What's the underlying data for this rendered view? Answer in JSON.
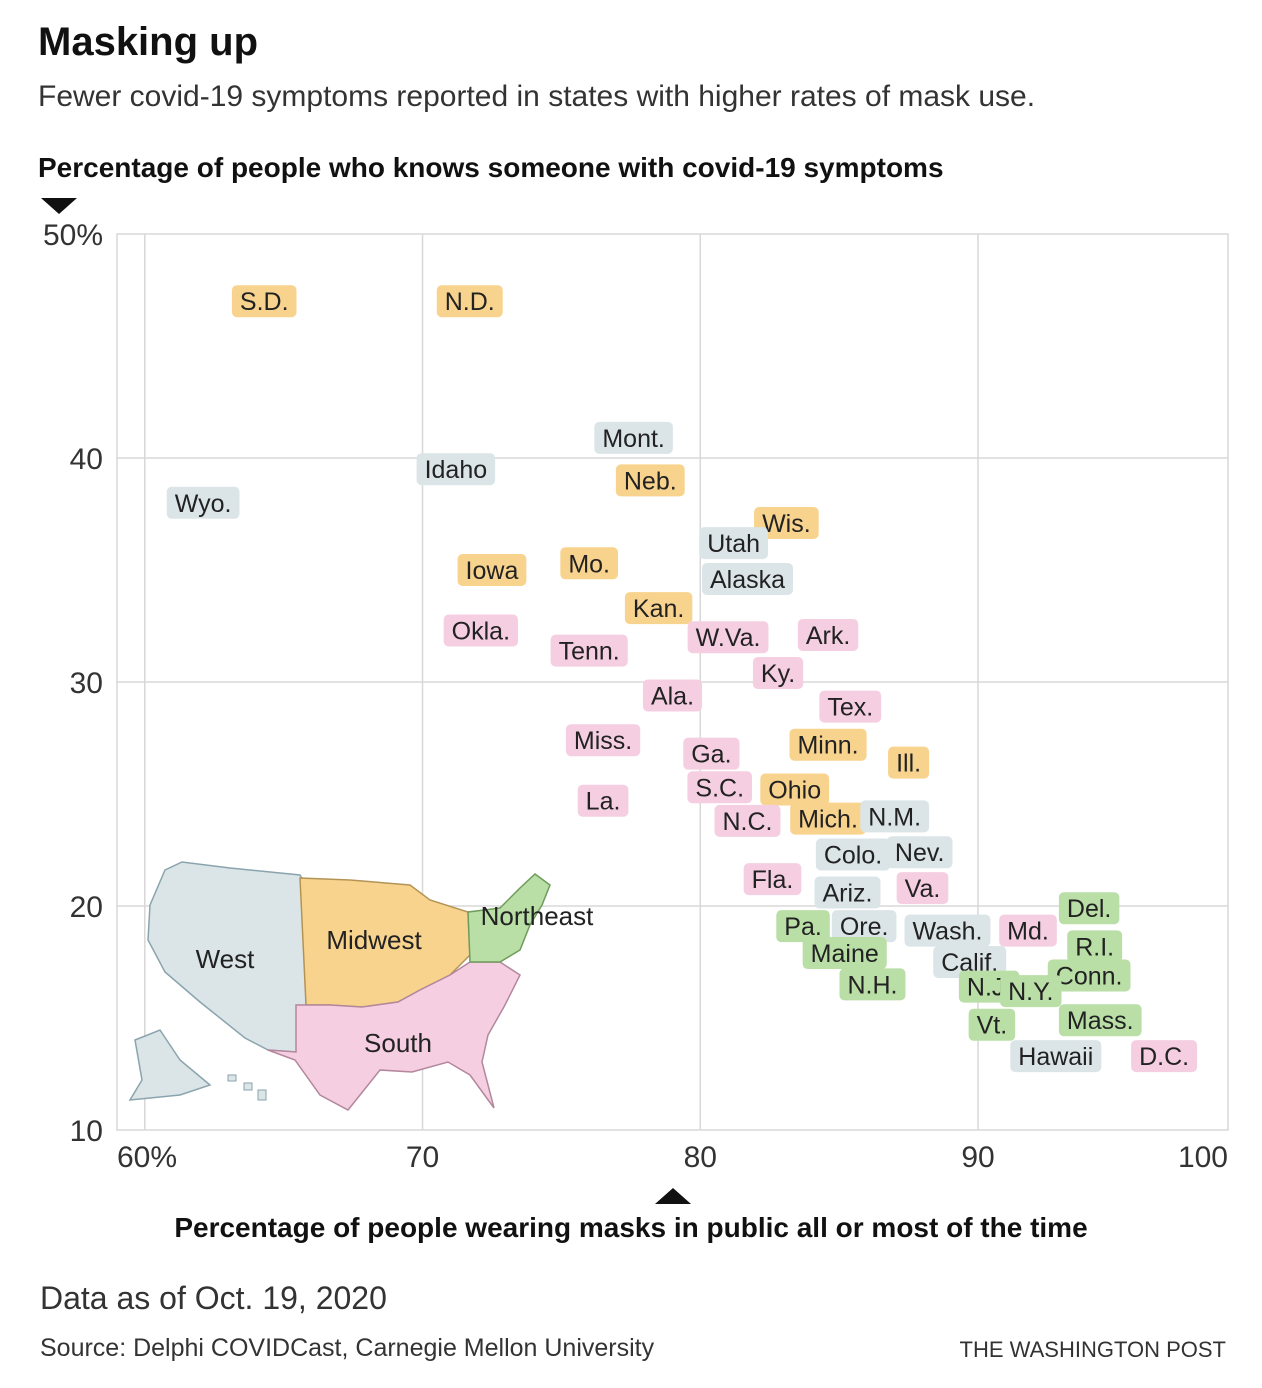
{
  "header": {
    "title": "Masking up",
    "subtitle": "Fewer covid-19 symptoms reported in states with higher rates of mask use."
  },
  "footer": {
    "data_as_of": "Data as of Oct. 19, 2020",
    "source": "Source: Delphi COVIDCast, Carnegie Mellon University",
    "credit": "THE WASHINGTON POST"
  },
  "colors": {
    "West": "#dbe5e8",
    "Midwest": "#f8d38e",
    "South": "#f5cfe1",
    "Northeast": "#b9dea6",
    "grid": "#d8d8d8"
  },
  "map": {
    "labels": {
      "West": "West",
      "Midwest": "Midwest",
      "South": "South",
      "Northeast": "Northeast"
    }
  },
  "chart_data": {
    "type": "scatter",
    "xlabel": "Percentage of people wearing masks in public all or most of the time",
    "ylabel": "Percentage of people who knows someone with covid-19 symptoms",
    "xlim": [
      59,
      99
    ],
    "ylim": [
      10,
      50
    ],
    "xticks": [
      {
        "v": 60,
        "label": "60%"
      },
      {
        "v": 70,
        "label": "70"
      },
      {
        "v": 80,
        "label": "80"
      },
      {
        "v": 90,
        "label": "90"
      },
      {
        "v": 100,
        "label": "100"
      }
    ],
    "yticks": [
      {
        "v": 50,
        "label": "50%"
      },
      {
        "v": 40,
        "label": "40"
      },
      {
        "v": 30,
        "label": "30"
      },
      {
        "v": 20,
        "label": "20"
      },
      {
        "v": 10,
        "label": "10"
      }
    ],
    "grid": true,
    "points": [
      {
        "label": "S.D.",
        "region": "Midwest",
        "x": 64.3,
        "y": 47.0
      },
      {
        "label": "N.D.",
        "region": "Midwest",
        "x": 71.7,
        "y": 47.0
      },
      {
        "label": "Wyo.",
        "region": "West",
        "x": 62.1,
        "y": 38.0
      },
      {
        "label": "Idaho",
        "region": "West",
        "x": 71.2,
        "y": 39.5
      },
      {
        "label": "Mont.",
        "region": "West",
        "x": 77.6,
        "y": 40.9
      },
      {
        "label": "Neb.",
        "region": "Midwest",
        "x": 78.2,
        "y": 39.0
      },
      {
        "label": "Wis.",
        "region": "Midwest",
        "x": 83.1,
        "y": 37.1
      },
      {
        "label": "Utah",
        "region": "West",
        "x": 81.2,
        "y": 36.2
      },
      {
        "label": "Alaska",
        "region": "West",
        "x": 81.7,
        "y": 34.6
      },
      {
        "label": "Iowa",
        "region": "Midwest",
        "x": 72.5,
        "y": 35.0
      },
      {
        "label": "Mo.",
        "region": "Midwest",
        "x": 76.0,
        "y": 35.3
      },
      {
        "label": "Kan.",
        "region": "Midwest",
        "x": 78.5,
        "y": 33.3
      },
      {
        "label": "Okla.",
        "region": "South",
        "x": 72.1,
        "y": 32.3
      },
      {
        "label": "Tenn.",
        "region": "South",
        "x": 76.0,
        "y": 31.4
      },
      {
        "label": "W.Va.",
        "region": "South",
        "x": 81.0,
        "y": 32.0
      },
      {
        "label": "Ark.",
        "region": "South",
        "x": 84.6,
        "y": 32.1
      },
      {
        "label": "Ky.",
        "region": "South",
        "x": 82.8,
        "y": 30.4
      },
      {
        "label": "Ala.",
        "region": "South",
        "x": 79.0,
        "y": 29.4
      },
      {
        "label": "Tex.",
        "region": "South",
        "x": 85.4,
        "y": 28.9
      },
      {
        "label": "Miss.",
        "region": "South",
        "x": 76.5,
        "y": 27.4
      },
      {
        "label": "Minn.",
        "region": "Midwest",
        "x": 84.6,
        "y": 27.2
      },
      {
        "label": "Ga.",
        "region": "South",
        "x": 80.4,
        "y": 26.8
      },
      {
        "label": "Ill.",
        "region": "Midwest",
        "x": 87.5,
        "y": 26.4
      },
      {
        "label": "La.",
        "region": "South",
        "x": 76.5,
        "y": 24.7
      },
      {
        "label": "S.C.",
        "region": "South",
        "x": 80.7,
        "y": 25.3
      },
      {
        "label": "Ohio",
        "region": "Midwest",
        "x": 83.4,
        "y": 25.2
      },
      {
        "label": "N.C.",
        "region": "South",
        "x": 81.7,
        "y": 23.8
      },
      {
        "label": "Mich.",
        "region": "Midwest",
        "x": 84.6,
        "y": 23.9
      },
      {
        "label": "N.M.",
        "region": "West",
        "x": 87.0,
        "y": 24.0
      },
      {
        "label": "Colo.",
        "region": "West",
        "x": 85.5,
        "y": 22.3
      },
      {
        "label": "Nev.",
        "region": "West",
        "x": 87.9,
        "y": 22.4
      },
      {
        "label": "Fla.",
        "region": "South",
        "x": 82.6,
        "y": 21.2
      },
      {
        "label": "Ariz.",
        "region": "West",
        "x": 85.3,
        "y": 20.6
      },
      {
        "label": "Va.",
        "region": "South",
        "x": 88.0,
        "y": 20.8
      },
      {
        "label": "Del.",
        "region": "Northeast",
        "x": 94.0,
        "y": 19.9
      },
      {
        "label": "Pa.",
        "region": "Northeast",
        "x": 83.7,
        "y": 19.1
      },
      {
        "label": "Ore.",
        "region": "West",
        "x": 85.9,
        "y": 19.1
      },
      {
        "label": "Wash.",
        "region": "West",
        "x": 88.9,
        "y": 18.9
      },
      {
        "label": "Md.",
        "region": "South",
        "x": 91.8,
        "y": 18.9
      },
      {
        "label": "R.I.",
        "region": "Northeast",
        "x": 94.2,
        "y": 18.2
      },
      {
        "label": "Maine",
        "region": "Northeast",
        "x": 85.2,
        "y": 17.9
      },
      {
        "label": "Calif.",
        "region": "West",
        "x": 89.7,
        "y": 17.5
      },
      {
        "label": "Conn.",
        "region": "Northeast",
        "x": 94.0,
        "y": 16.9
      },
      {
        "label": "N.H.",
        "region": "Northeast",
        "x": 86.2,
        "y": 16.5
      },
      {
        "label": "N.J.",
        "region": "Northeast",
        "x": 90.4,
        "y": 16.4
      },
      {
        "label": "N.Y.",
        "region": "Northeast",
        "x": 91.9,
        "y": 16.2
      },
      {
        "label": "Mass.",
        "region": "Northeast",
        "x": 94.4,
        "y": 14.9
      },
      {
        "label": "Vt.",
        "region": "Northeast",
        "x": 90.5,
        "y": 14.7
      },
      {
        "label": "Hawaii",
        "region": "West",
        "x": 92.8,
        "y": 13.3
      },
      {
        "label": "D.C.",
        "region": "South",
        "x": 96.7,
        "y": 13.3
      }
    ]
  }
}
